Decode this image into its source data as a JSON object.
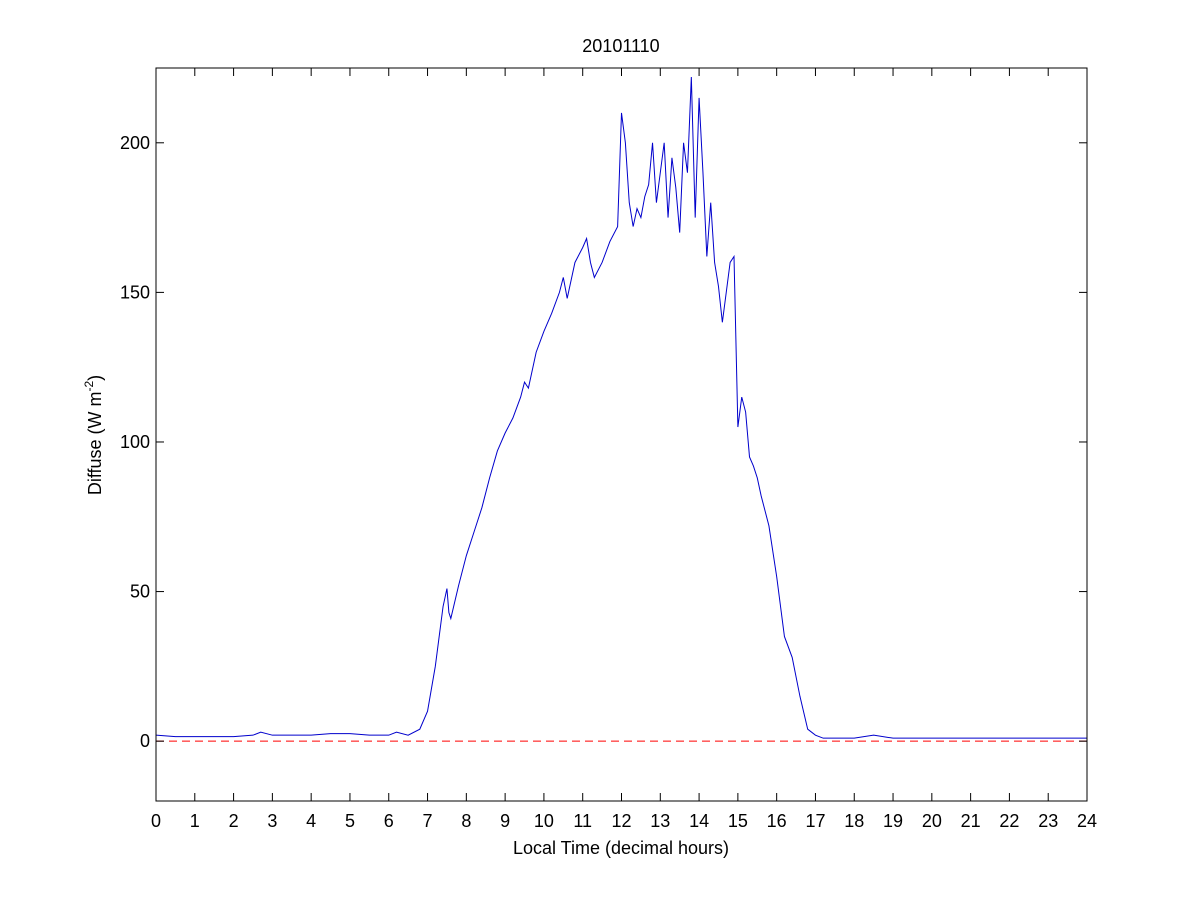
{
  "chart_data": {
    "type": "line",
    "title": "20101110",
    "xlabel": "Local Time (decimal hours)",
    "ylabel": "Diffuse (W m",
    "ylabel_sup": "-2",
    "ylabel_close": ")",
    "xlim": [
      0,
      24
    ],
    "ylim": [
      -20,
      225
    ],
    "xticks": [
      0,
      1,
      2,
      3,
      4,
      5,
      6,
      7,
      8,
      9,
      10,
      11,
      12,
      13,
      14,
      15,
      16,
      17,
      18,
      19,
      20,
      21,
      22,
      23,
      24
    ],
    "yticks": [
      0,
      50,
      100,
      150,
      200
    ],
    "grid": false,
    "series": [
      {
        "color": "#0000cc",
        "x": [
          0,
          0.5,
          1,
          1.5,
          2,
          2.5,
          2.7,
          3,
          3.5,
          4,
          4.5,
          5,
          5.5,
          6,
          6.2,
          6.5,
          6.8,
          7,
          7.2,
          7.4,
          7.5,
          7.55,
          7.6,
          7.8,
          8,
          8.2,
          8.4,
          8.6,
          8.8,
          9,
          9.2,
          9.4,
          9.5,
          9.6,
          9.8,
          10,
          10.2,
          10.4,
          10.5,
          10.6,
          10.8,
          11,
          11.1,
          11.2,
          11.3,
          11.5,
          11.7,
          11.9,
          12,
          12.1,
          12.2,
          12.3,
          12.4,
          12.5,
          12.6,
          12.7,
          12.8,
          12.9,
          13,
          13.1,
          13.2,
          13.3,
          13.4,
          13.5,
          13.6,
          13.7,
          13.8,
          13.9,
          14,
          14.1,
          14.2,
          14.3,
          14.4,
          14.5,
          14.6,
          14.7,
          14.8,
          14.9,
          15,
          15.1,
          15.2,
          15.3,
          15.4,
          15.5,
          15.6,
          15.8,
          16,
          16.2,
          16.4,
          16.6,
          16.8,
          17,
          17.2,
          17.4,
          17.6,
          18,
          18.5,
          19,
          19.5,
          20,
          20.5,
          21,
          21.5,
          22,
          22.5,
          23,
          23.5,
          24
        ],
        "y": [
          2,
          1.5,
          1.5,
          1.5,
          1.5,
          2,
          3,
          2,
          2,
          2,
          2.5,
          2.5,
          2,
          2,
          3,
          2,
          4,
          10,
          25,
          45,
          51,
          43,
          41,
          52,
          62,
          70,
          78,
          88,
          97,
          103,
          108,
          115,
          120,
          118,
          130,
          137,
          143,
          150,
          155,
          148,
          160,
          165,
          168,
          160,
          155,
          160,
          167,
          172,
          210,
          200,
          180,
          172,
          178,
          175,
          182,
          186,
          200,
          180,
          190,
          200,
          175,
          195,
          185,
          170,
          200,
          190,
          222,
          175,
          215,
          190,
          162,
          180,
          160,
          152,
          140,
          150,
          160,
          162,
          105,
          115,
          110,
          95,
          92,
          88,
          82,
          72,
          55,
          35,
          28,
          15,
          4,
          2,
          1,
          1,
          1,
          1,
          2,
          1,
          1,
          1,
          1,
          1,
          1,
          1,
          1,
          1,
          1,
          1
        ]
      },
      {
        "color": "#ff0000",
        "dashed": true,
        "x": [
          0,
          24
        ],
        "y": [
          0,
          0
        ]
      }
    ]
  }
}
